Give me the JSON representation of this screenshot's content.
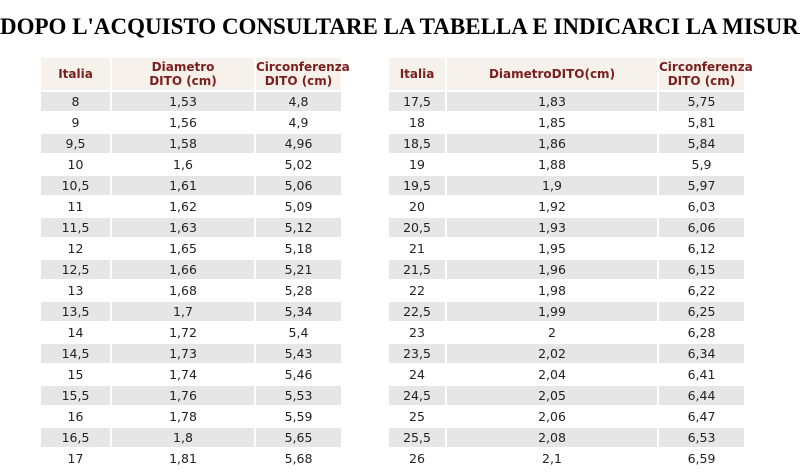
{
  "header": {
    "title": "DOPO L'ACQUISTO CONSULTARE LA TABELLA E INDICARCI LA MISURA"
  },
  "tables": [
    {
      "columns": [
        [
          "Italia"
        ],
        [
          "Diametro",
          "DITO (cm)"
        ],
        [
          "Circonferenza",
          "DITO (cm)"
        ]
      ],
      "rows": [
        [
          "8",
          "1,53",
          "4,8"
        ],
        [
          "9",
          "1,56",
          "4,9"
        ],
        [
          "9,5",
          "1,58",
          "4,96"
        ],
        [
          "10",
          "1,6",
          "5,02"
        ],
        [
          "10,5",
          "1,61",
          "5,06"
        ],
        [
          "11",
          "1,62",
          "5,09"
        ],
        [
          "11,5",
          "1,63",
          "5,12"
        ],
        [
          "12",
          "1,65",
          "5,18"
        ],
        [
          "12,5",
          "1,66",
          "5,21"
        ],
        [
          "13",
          "1,68",
          "5,28"
        ],
        [
          "13,5",
          "1,7",
          "5,34"
        ],
        [
          "14",
          "1,72",
          "5,4"
        ],
        [
          "14,5",
          "1,73",
          "5,43"
        ],
        [
          "15",
          "1,74",
          "5,46"
        ],
        [
          "15,5",
          "1,76",
          "5,53"
        ],
        [
          "16",
          "1,78",
          "5,59"
        ],
        [
          "16,5",
          "1,8",
          "5,65"
        ],
        [
          "17",
          "1,81",
          "5,68"
        ]
      ]
    },
    {
      "columns": [
        [
          "Italia"
        ],
        [
          "DiametroDITO(cm)"
        ],
        [
          "Circonferenza",
          "DITO (cm)"
        ]
      ],
      "rows": [
        [
          "17,5",
          "1,83",
          "5,75"
        ],
        [
          "18",
          "1,85",
          "5,81"
        ],
        [
          "18,5",
          "1,86",
          "5,84"
        ],
        [
          "19",
          "1,88",
          "5,9"
        ],
        [
          "19,5",
          "1,9",
          "5,97"
        ],
        [
          "20",
          "1,92",
          "6,03"
        ],
        [
          "20,5",
          "1,93",
          "6,06"
        ],
        [
          "21",
          "1,95",
          "6,12"
        ],
        [
          "21,5",
          "1,96",
          "6,15"
        ],
        [
          "22",
          "1,98",
          "6,22"
        ],
        [
          "22,5",
          "1,99",
          "6,25"
        ],
        [
          "23",
          "2",
          "6,28"
        ],
        [
          "23,5",
          "2,02",
          "6,34"
        ],
        [
          "24",
          "2,04",
          "6,41"
        ],
        [
          "24,5",
          "2,05",
          "6,44"
        ],
        [
          "25",
          "2,06",
          "6,47"
        ],
        [
          "25,5",
          "2,08",
          "6,53"
        ],
        [
          "26",
          "2,1",
          "6,59"
        ]
      ]
    }
  ]
}
